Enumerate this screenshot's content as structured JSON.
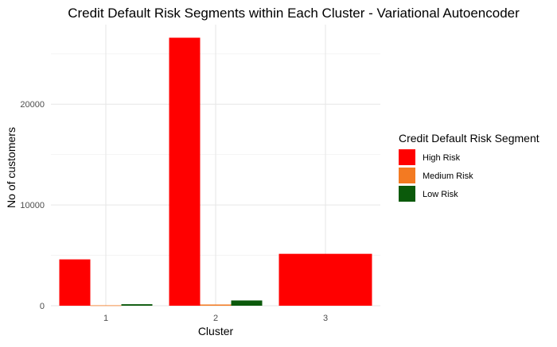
{
  "chart_data": {
    "type": "bar",
    "title": "Credit Default Risk Segments within Each Cluster - Variational Autoencoder",
    "xlabel": "Cluster",
    "ylabel": "No of customers",
    "categories": [
      "1",
      "2",
      "3"
    ],
    "series": [
      {
        "name": "High Risk",
        "values": [
          4600,
          26600,
          5150
        ],
        "color": "#ff0000"
      },
      {
        "name": "Medium Risk",
        "values": [
          40,
          120,
          0
        ],
        "color": "#f37a22"
      },
      {
        "name": "Low Risk",
        "values": [
          150,
          520,
          0
        ],
        "color": "#0b5a0b"
      }
    ],
    "yticks": [
      0,
      10000,
      20000
    ],
    "ytick_labels": [
      "0",
      "10000",
      "20000"
    ],
    "ylim": [
      0,
      27900
    ],
    "grid": true,
    "legend": {
      "title": "Credit Default Risk Segment",
      "position": "right"
    }
  }
}
